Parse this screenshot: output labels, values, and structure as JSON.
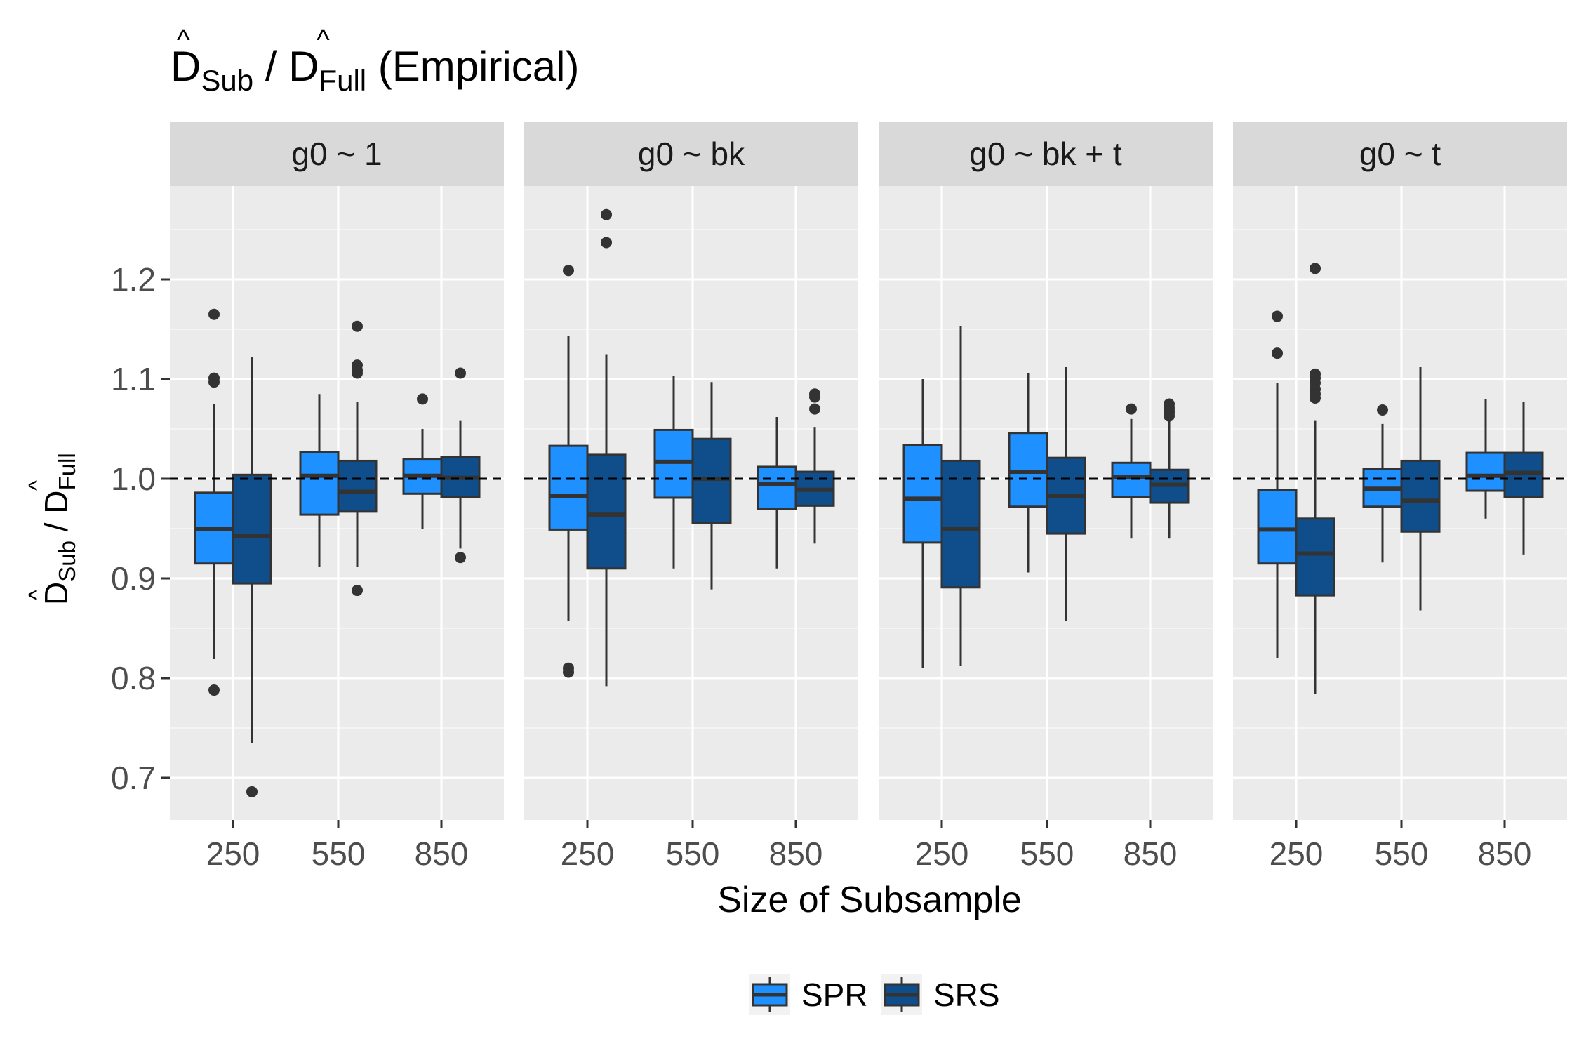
{
  "chart_data": {
    "type": "boxplot",
    "title": {
      "prefix": "D",
      "sub1": "Sub",
      "sep": " / ",
      "mid": "D",
      "sub2": "Full",
      "suffix": " (Empirical)",
      "hat": "^"
    },
    "ylabel": {
      "prefix": "D",
      "sub1": "Sub",
      "sep": " / ",
      "mid": "D",
      "sub2": "Full",
      "hat": "^"
    },
    "xlabel": "Size of Subsample",
    "ylim": [
      0.655,
      1.3
    ],
    "y_ticks": [
      "0.7",
      "0.8",
      "0.9",
      "1.0",
      "1.1",
      "1.2"
    ],
    "y_tick_values": [
      0.7,
      0.8,
      0.9,
      1.0,
      1.1,
      1.2
    ],
    "x_categories": [
      "250",
      "550",
      "850"
    ],
    "reference_line": 1.0,
    "grid": true,
    "legend_position": "bottom",
    "legend": [
      {
        "name": "SPR",
        "color": "#1e90ff"
      },
      {
        "name": "SRS",
        "color": "#104e8b"
      }
    ],
    "panels": [
      {
        "label": "g0 ~ 1",
        "boxes": [
          {
            "x": "250",
            "series": "SPR",
            "low": 0.819,
            "q1": 0.915,
            "median": 0.95,
            "q3": 0.986,
            "high": 1.075,
            "outliers": [
              1.165,
              1.097,
              1.101,
              0.788
            ]
          },
          {
            "x": "250",
            "series": "SRS",
            "low": 0.735,
            "q1": 0.895,
            "median": 0.943,
            "q3": 1.004,
            "high": 1.122,
            "outliers": [
              0.686
            ]
          },
          {
            "x": "550",
            "series": "SPR",
            "low": 0.912,
            "q1": 0.964,
            "median": 1.003,
            "q3": 1.027,
            "high": 1.085,
            "outliers": []
          },
          {
            "x": "550",
            "series": "SRS",
            "low": 0.912,
            "q1": 0.967,
            "median": 0.987,
            "q3": 1.018,
            "high": 1.077,
            "outliers": [
              1.153,
              1.114,
              1.109,
              1.106,
              0.888
            ]
          },
          {
            "x": "850",
            "series": "SPR",
            "low": 0.95,
            "q1": 0.985,
            "median": 1.003,
            "q3": 1.02,
            "high": 1.05,
            "outliers": [
              1.08
            ]
          },
          {
            "x": "850",
            "series": "SRS",
            "low": 0.93,
            "q1": 0.982,
            "median": 1.001,
            "q3": 1.022,
            "high": 1.058,
            "outliers": [
              1.106,
              0.921
            ]
          }
        ]
      },
      {
        "label": "g0 ~ bk",
        "boxes": [
          {
            "x": "250",
            "series": "SPR",
            "low": 0.857,
            "q1": 0.949,
            "median": 0.983,
            "q3": 1.033,
            "high": 1.143,
            "outliers": [
              1.209,
              0.806,
              0.81
            ]
          },
          {
            "x": "250",
            "series": "SRS",
            "low": 0.792,
            "q1": 0.91,
            "median": 0.964,
            "q3": 1.024,
            "high": 1.125,
            "outliers": [
              1.265,
              1.237
            ]
          },
          {
            "x": "550",
            "series": "SPR",
            "low": 0.91,
            "q1": 0.981,
            "median": 1.017,
            "q3": 1.049,
            "high": 1.103,
            "outliers": []
          },
          {
            "x": "550",
            "series": "SRS",
            "low": 0.889,
            "q1": 0.956,
            "median": 1.0,
            "q3": 1.04,
            "high": 1.097,
            "outliers": []
          },
          {
            "x": "850",
            "series": "SPR",
            "low": 0.91,
            "q1": 0.97,
            "median": 0.995,
            "q3": 1.012,
            "high": 1.062,
            "outliers": []
          },
          {
            "x": "850",
            "series": "SRS",
            "low": 0.935,
            "q1": 0.973,
            "median": 0.989,
            "q3": 1.007,
            "high": 1.052,
            "outliers": [
              1.085,
              1.082,
              1.07
            ]
          }
        ]
      },
      {
        "label": "g0 ~ bk + t",
        "boxes": [
          {
            "x": "250",
            "series": "SPR",
            "low": 0.81,
            "q1": 0.936,
            "median": 0.98,
            "q3": 1.034,
            "high": 1.1,
            "outliers": []
          },
          {
            "x": "250",
            "series": "SRS",
            "low": 0.812,
            "q1": 0.891,
            "median": 0.95,
            "q3": 1.018,
            "high": 1.153,
            "outliers": []
          },
          {
            "x": "550",
            "series": "SPR",
            "low": 0.906,
            "q1": 0.972,
            "median": 1.007,
            "q3": 1.046,
            "high": 1.106,
            "outliers": []
          },
          {
            "x": "550",
            "series": "SRS",
            "low": 0.857,
            "q1": 0.945,
            "median": 0.983,
            "q3": 1.021,
            "high": 1.112,
            "outliers": []
          },
          {
            "x": "850",
            "series": "SPR",
            "low": 0.94,
            "q1": 0.982,
            "median": 1.002,
            "q3": 1.016,
            "high": 1.06,
            "outliers": [
              1.07
            ]
          },
          {
            "x": "850",
            "series": "SRS",
            "low": 0.94,
            "q1": 0.976,
            "median": 0.994,
            "q3": 1.009,
            "high": 1.06,
            "outliers": [
              1.075,
              1.071,
              1.068,
              1.066,
              1.063
            ]
          }
        ]
      },
      {
        "label": "g0 ~ t",
        "boxes": [
          {
            "x": "250",
            "series": "SPR",
            "low": 0.82,
            "q1": 0.915,
            "median": 0.949,
            "q3": 0.989,
            "high": 1.096,
            "outliers": [
              1.163,
              1.126
            ]
          },
          {
            "x": "250",
            "series": "SRS",
            "low": 0.784,
            "q1": 0.883,
            "median": 0.925,
            "q3": 0.96,
            "high": 1.058,
            "outliers": [
              1.211,
              1.105,
              1.101,
              1.096,
              1.09,
              1.085,
              1.081
            ]
          },
          {
            "x": "550",
            "series": "SPR",
            "low": 0.916,
            "q1": 0.972,
            "median": 0.99,
            "q3": 1.01,
            "high": 1.055,
            "outliers": [
              1.069
            ]
          },
          {
            "x": "550",
            "series": "SRS",
            "low": 0.868,
            "q1": 0.947,
            "median": 0.978,
            "q3": 1.018,
            "high": 1.112,
            "outliers": []
          },
          {
            "x": "850",
            "series": "SPR",
            "low": 0.96,
            "q1": 0.988,
            "median": 1.003,
            "q3": 1.026,
            "high": 1.08,
            "outliers": []
          },
          {
            "x": "850",
            "series": "SRS",
            "low": 0.924,
            "q1": 0.982,
            "median": 1.006,
            "q3": 1.026,
            "high": 1.077,
            "outliers": []
          }
        ]
      }
    ]
  }
}
